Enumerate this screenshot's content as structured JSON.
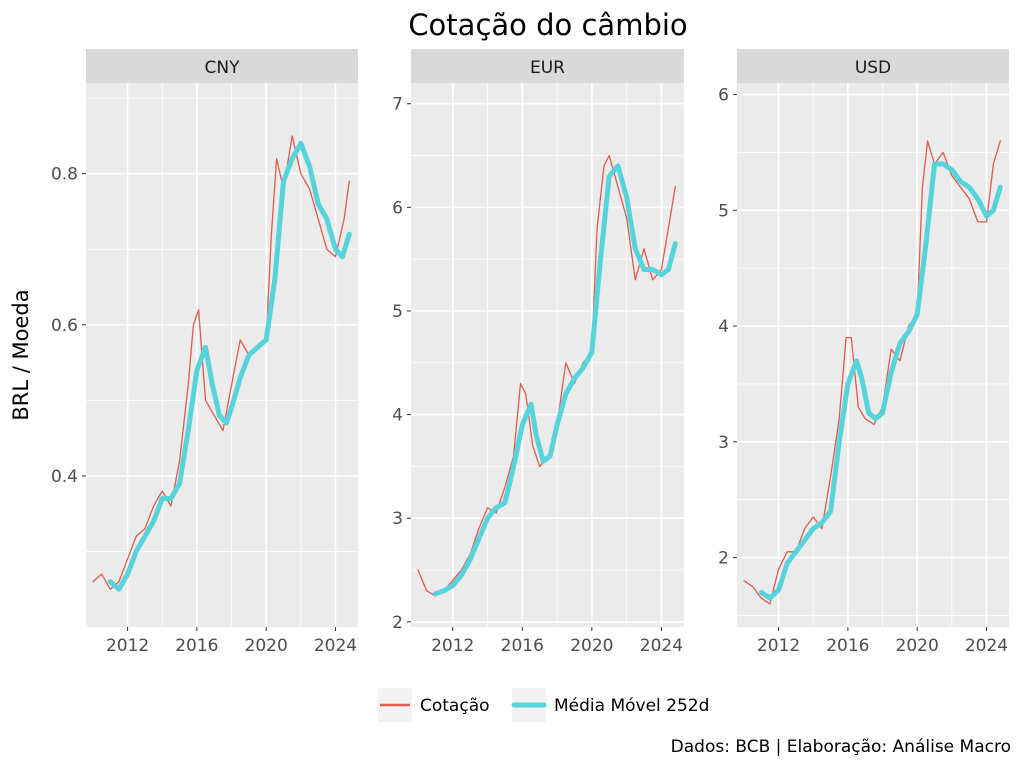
{
  "chart_data": {
    "type": "line",
    "title": "Cotação do câmbio",
    "ylabel": "BRL / Moeda",
    "xlabel": "",
    "caption": "Dados: BCB | Elaboração: Análise Macro",
    "legend": {
      "position": "bottom",
      "entries": [
        {
          "label": "Cotação",
          "color": "#e05a4e"
        },
        {
          "label": "Média Móvel 252d",
          "color": "#57d3db"
        }
      ]
    },
    "grid": true,
    "colors": {
      "panel_bg": "#ebebeb",
      "strip_bg": "#d9d9d9",
      "grid": "#ffffff"
    },
    "panels": [
      {
        "facet": "CNY",
        "xlim": [
          2009.6,
          2025.3
        ],
        "ylim": [
          0.2,
          0.92
        ],
        "xticks": [
          2012,
          2016,
          2020,
          2024
        ],
        "xtick_labels": [
          "2012",
          "2016",
          "2020",
          "2024"
        ],
        "yticks": [
          0.4,
          0.6,
          0.8
        ],
        "ytick_labels": [
          "0.4",
          "0.6",
          "0.8"
        ],
        "series": [
          {
            "name": "Cotação",
            "x": [
              2010.0,
              2010.5,
              2011.0,
              2011.5,
              2012.0,
              2012.5,
              2013.0,
              2013.5,
              2014.0,
              2014.5,
              2015.0,
              2015.5,
              2015.8,
              2016.1,
              2016.5,
              2017.0,
              2017.5,
              2018.0,
              2018.5,
              2019.0,
              2019.5,
              2020.0,
              2020.3,
              2020.6,
              2021.0,
              2021.5,
              2022.0,
              2022.5,
              2023.0,
              2023.5,
              2024.0,
              2024.5,
              2024.8
            ],
            "y": [
              0.26,
              0.27,
              0.25,
              0.26,
              0.29,
              0.32,
              0.33,
              0.36,
              0.38,
              0.36,
              0.42,
              0.52,
              0.6,
              0.62,
              0.5,
              0.48,
              0.46,
              0.52,
              0.58,
              0.56,
              0.57,
              0.58,
              0.72,
              0.82,
              0.78,
              0.85,
              0.8,
              0.78,
              0.74,
              0.7,
              0.69,
              0.74,
              0.79
            ]
          },
          {
            "name": "Média Móvel 252d",
            "x": [
              2011.0,
              2011.5,
              2012.0,
              2012.5,
              2013.0,
              2013.5,
              2014.0,
              2014.5,
              2015.0,
              2015.5,
              2016.0,
              2016.5,
              2016.9,
              2017.3,
              2017.7,
              2018.0,
              2018.5,
              2019.0,
              2019.5,
              2020.0,
              2020.5,
              2021.0,
              2021.5,
              2022.0,
              2022.5,
              2023.0,
              2023.5,
              2024.0,
              2024.4,
              2024.8
            ],
            "y": [
              0.26,
              0.25,
              0.27,
              0.3,
              0.32,
              0.34,
              0.37,
              0.37,
              0.39,
              0.46,
              0.54,
              0.57,
              0.52,
              0.48,
              0.47,
              0.49,
              0.53,
              0.56,
              0.57,
              0.58,
              0.66,
              0.79,
              0.82,
              0.84,
              0.81,
              0.76,
              0.74,
              0.7,
              0.69,
              0.72
            ]
          }
        ]
      },
      {
        "facet": "EUR",
        "xlim": [
          2009.6,
          2025.3
        ],
        "ylim": [
          1.95,
          7.2
        ],
        "xticks": [
          2012,
          2016,
          2020,
          2024
        ],
        "xtick_labels": [
          "2012",
          "2016",
          "2020",
          "2024"
        ],
        "yticks": [
          2,
          3,
          4,
          5,
          6,
          7
        ],
        "ytick_labels": [
          "2",
          "3",
          "4",
          "5",
          "6",
          "7"
        ],
        "series": [
          {
            "name": "Cotação",
            "x": [
              2010.0,
              2010.5,
              2011.0,
              2011.5,
              2012.0,
              2012.5,
              2013.0,
              2013.5,
              2014.0,
              2014.5,
              2015.0,
              2015.5,
              2015.9,
              2016.2,
              2016.6,
              2017.0,
              2017.5,
              2018.0,
              2018.5,
              2019.0,
              2019.5,
              2020.0,
              2020.3,
              2020.7,
              2021.0,
              2021.5,
              2022.0,
              2022.5,
              2023.0,
              2023.5,
              2024.0,
              2024.4,
              2024.8
            ],
            "y": [
              2.5,
              2.3,
              2.25,
              2.3,
              2.4,
              2.5,
              2.65,
              2.9,
              3.1,
              3.05,
              3.3,
              3.6,
              4.3,
              4.2,
              3.7,
              3.5,
              3.6,
              3.9,
              4.5,
              4.3,
              4.5,
              4.6,
              5.8,
              6.4,
              6.5,
              6.2,
              5.9,
              5.3,
              5.6,
              5.3,
              5.4,
              5.8,
              6.2
            ]
          },
          {
            "name": "Média Móvel 252d",
            "x": [
              2011.0,
              2011.5,
              2012.0,
              2012.5,
              2013.0,
              2013.5,
              2014.0,
              2014.5,
              2015.0,
              2015.5,
              2016.0,
              2016.5,
              2016.8,
              2017.2,
              2017.6,
              2018.0,
              2018.5,
              2019.0,
              2019.5,
              2020.0,
              2020.5,
              2021.0,
              2021.5,
              2022.0,
              2022.5,
              2023.0,
              2023.5,
              2024.0,
              2024.4,
              2024.8
            ],
            "y": [
              2.27,
              2.3,
              2.35,
              2.45,
              2.6,
              2.8,
              3.0,
              3.1,
              3.15,
              3.5,
              3.9,
              4.1,
              3.8,
              3.55,
              3.6,
              3.9,
              4.2,
              4.35,
              4.45,
              4.6,
              5.5,
              6.3,
              6.4,
              6.1,
              5.6,
              5.4,
              5.4,
              5.35,
              5.4,
              5.65
            ]
          }
        ]
      },
      {
        "facet": "USD",
        "xlim": [
          2009.6,
          2025.3
        ],
        "ylim": [
          1.4,
          6.1
        ],
        "xticks": [
          2012,
          2016,
          2020,
          2024
        ],
        "xtick_labels": [
          "2012",
          "2016",
          "2020",
          "2024"
        ],
        "yticks": [
          2,
          3,
          4,
          5,
          6
        ],
        "ytick_labels": [
          "2",
          "3",
          "4",
          "5",
          "6"
        ],
        "series": [
          {
            "name": "Cotação",
            "x": [
              2010.0,
              2010.5,
              2011.0,
              2011.5,
              2012.0,
              2012.5,
              2013.0,
              2013.5,
              2014.0,
              2014.5,
              2015.0,
              2015.5,
              2015.9,
              2016.2,
              2016.6,
              2017.0,
              2017.5,
              2018.0,
              2018.5,
              2019.0,
              2019.5,
              2020.0,
              2020.3,
              2020.6,
              2021.0,
              2021.5,
              2022.0,
              2022.5,
              2023.0,
              2023.5,
              2024.0,
              2024.4,
              2024.8
            ],
            "y": [
              1.8,
              1.75,
              1.65,
              1.6,
              1.9,
              2.05,
              2.05,
              2.25,
              2.35,
              2.25,
              2.7,
              3.2,
              3.9,
              3.9,
              3.3,
              3.2,
              3.15,
              3.3,
              3.8,
              3.7,
              4.0,
              4.1,
              5.2,
              5.6,
              5.4,
              5.5,
              5.3,
              5.2,
              5.1,
              4.9,
              4.9,
              5.4,
              5.6
            ]
          },
          {
            "name": "Média Móvel 252d",
            "x": [
              2011.0,
              2011.5,
              2012.0,
              2012.5,
              2013.0,
              2013.5,
              2014.0,
              2014.5,
              2015.0,
              2015.5,
              2016.0,
              2016.5,
              2016.8,
              2017.2,
              2017.6,
              2018.0,
              2018.5,
              2019.0,
              2019.5,
              2020.0,
              2020.5,
              2021.0,
              2021.5,
              2022.0,
              2022.5,
              2023.0,
              2023.5,
              2024.0,
              2024.4,
              2024.8
            ],
            "y": [
              1.7,
              1.65,
              1.72,
              1.95,
              2.05,
              2.15,
              2.25,
              2.3,
              2.4,
              3.0,
              3.5,
              3.7,
              3.55,
              3.25,
              3.2,
              3.25,
              3.6,
              3.85,
              3.95,
              4.1,
              4.7,
              5.4,
              5.4,
              5.35,
              5.25,
              5.2,
              5.1,
              4.95,
              5.0,
              5.2
            ]
          }
        ]
      }
    ]
  }
}
